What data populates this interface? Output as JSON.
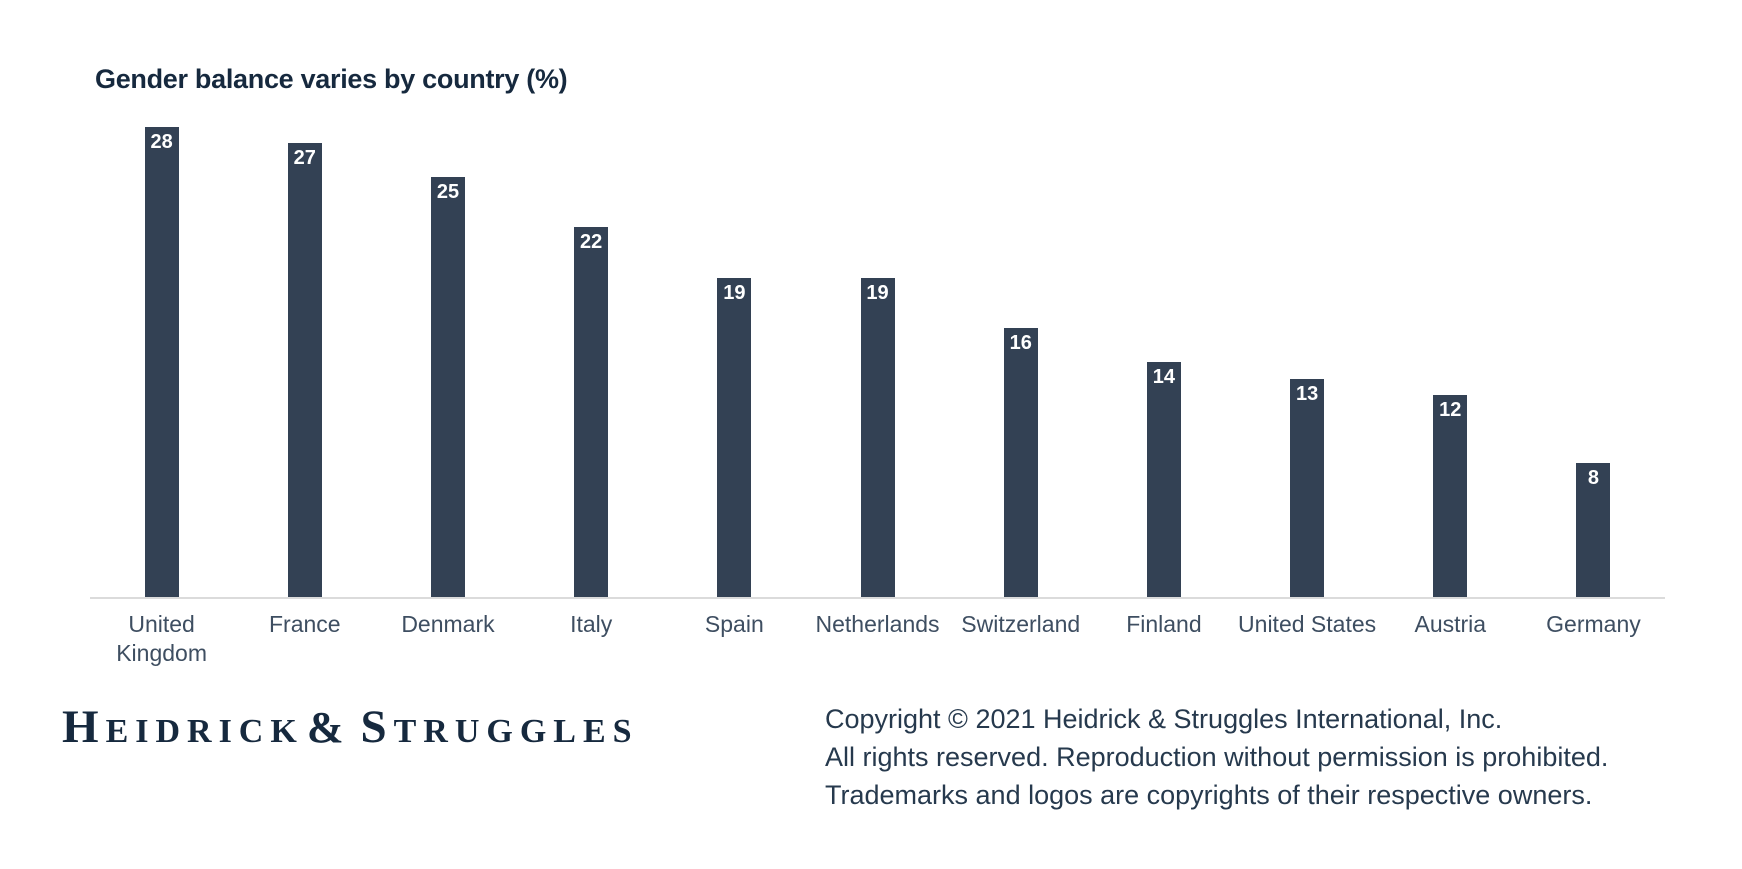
{
  "chart_data": {
    "type": "bar",
    "title": "Gender balance varies by country (%)",
    "categories": [
      "United Kingdom",
      "France",
      "Denmark",
      "Italy",
      "Spain",
      "Netherlands",
      "Switzerland",
      "Finland",
      "United States",
      "Austria",
      "Germany"
    ],
    "values": [
      28,
      27,
      25,
      22,
      19,
      19,
      16,
      14,
      13,
      12,
      8
    ],
    "xlabel": "",
    "ylabel": "",
    "ylim": [
      0,
      30
    ],
    "grid": false,
    "legend": false,
    "value_labels": "inside-top"
  },
  "colors": {
    "bar": "#334154",
    "bar_value_label": "#ffffff",
    "title_text": "#16293e",
    "axis_label_text": "#3e4e61",
    "baseline": "#dbdbdb",
    "logo_text": "#16293e",
    "copyright_text": "#26394d",
    "background": "#ffffff"
  },
  "footer": {
    "logo": {
      "parts": [
        "H",
        "EIDRICK",
        "&",
        "S",
        "TRUGGLES"
      ]
    },
    "copyright_lines": [
      "Copyright © 2021 Heidrick & Struggles International, Inc.",
      "All rights reserved. Reproduction without permission is prohibited.",
      "Trademarks and logos are copyrights of their respective owners."
    ]
  }
}
